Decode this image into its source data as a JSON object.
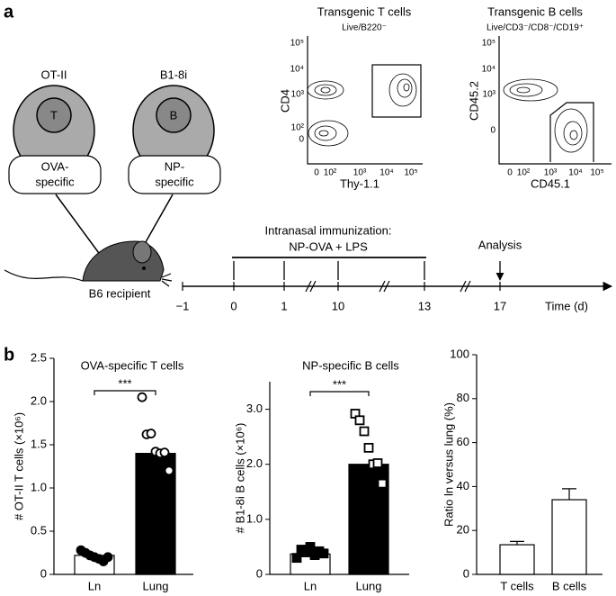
{
  "panel_a": {
    "label": "a",
    "cells": [
      {
        "name": "OT-II",
        "letter": "T",
        "specificity": [
          "OVA-",
          "specific"
        ]
      },
      {
        "name": "B1-8i",
        "letter": "B",
        "specificity": [
          "NP-",
          "specific"
        ]
      }
    ],
    "recipient": "B6 recipient",
    "flow": [
      {
        "title": "Transgenic T cells",
        "gate": "Live/B220⁻",
        "ylabel": "CD4",
        "xlabel": "Thy-1.1",
        "yticks": [
          "10⁵",
          "10⁴",
          "10³",
          "10²",
          "0"
        ],
        "xticks": [
          "0",
          "10²",
          "10³",
          "10⁴",
          "10⁵"
        ]
      },
      {
        "title": "Transgenic B cells",
        "gate": "Live/CD3⁻/CD8⁻/CD19⁺",
        "ylabel": "CD45.2",
        "xlabel": "CD45.1",
        "yticks": [
          "10⁵",
          "10⁴",
          "10³",
          "0"
        ],
        "xticks": [
          "0",
          "10²",
          "10³",
          "10⁴",
          "10⁵"
        ]
      }
    ],
    "timeline": {
      "treatment": [
        "Intranasal immunization:",
        "NP-OVA + LPS"
      ],
      "analysis": "Analysis",
      "days": [
        "−1",
        "0",
        "1",
        "10",
        "13",
        "17"
      ],
      "unit": "Time (d)"
    }
  },
  "panel_b": {
    "label": "b"
  },
  "chart_data": [
    {
      "type": "bar",
      "title": "OVA-specific T cells",
      "ylabel": "# OT-II T cells (×10⁶)",
      "categories": [
        "Ln",
        "Lung"
      ],
      "values": [
        0.22,
        1.4
      ],
      "colors": [
        "#ffffff",
        "#000000"
      ],
      "points": [
        [
          0.28,
          0.25,
          0.22,
          0.2,
          0.18,
          0.15,
          0.2
        ],
        [
          2.05,
          1.62,
          1.63,
          1.42,
          1.4,
          1.41,
          1.2
        ]
      ],
      "marker": "circle",
      "point_colors": [
        "#000000",
        "#ffffff"
      ],
      "significance": "***",
      "ylim": [
        0,
        2.5
      ],
      "yticks": [
        0,
        0.5,
        {
          "value": 1,
          "label": "1.0"
        },
        1.5,
        {
          "value": 2,
          "label": "2.0"
        },
        2.5
      ]
    },
    {
      "type": "bar",
      "title": "NP-specific B cells",
      "ylabel": "# B1-8i B cells (×10⁶)",
      "categories": [
        "Ln",
        "Lung"
      ],
      "values": [
        0.37,
        2.0
      ],
      "colors": [
        "#ffffff",
        "#000000"
      ],
      "points": [
        [
          0.3,
          0.45,
          0.4,
          0.5,
          0.35,
          0.42,
          0.38
        ],
        [
          2.92,
          2.8,
          2.6,
          2.3,
          2.0,
          2.02,
          1.65
        ]
      ],
      "marker": "square",
      "point_colors": [
        "#000000",
        "#ffffff"
      ],
      "significance": "***",
      "ylim": [
        0,
        3.5
      ],
      "yticks": [
        0,
        {
          "value": 1,
          "label": "1.0"
        },
        {
          "value": 2,
          "label": "2.0"
        },
        {
          "value": 3,
          "label": "3.0"
        }
      ]
    },
    {
      "type": "bar",
      "ylabel": "Ratio ln versus lung (%)",
      "categories": [
        "T cells",
        "B cells"
      ],
      "values": [
        13.5,
        34
      ],
      "errors": [
        1.5,
        5
      ],
      "colors": [
        "#ffffff",
        "#ffffff"
      ],
      "ylim": [
        0,
        100
      ],
      "yticks": [
        0,
        20,
        40,
        60,
        80,
        100
      ]
    }
  ]
}
